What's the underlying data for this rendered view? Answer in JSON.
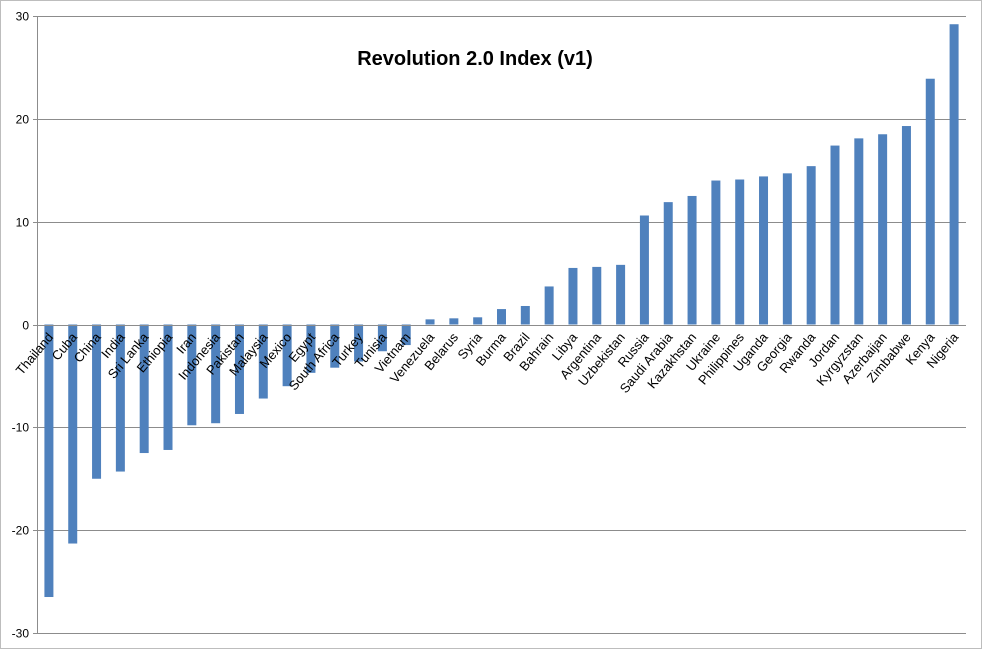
{
  "chart_data": {
    "type": "bar",
    "title": "Revolution 2.0 Index (v1)",
    "xlabel": "",
    "ylabel": "",
    "ylim": [
      -30,
      30
    ],
    "yticks": [
      30,
      20,
      10,
      0,
      -10,
      -20,
      -30
    ],
    "grid": "horizontal",
    "legend": "none",
    "bar_color": "#4f81bd",
    "categories": [
      "Thailand",
      "Cuba",
      "China",
      "India",
      "Sri Lanka",
      "Ethiopia",
      "Iran",
      "Indonesia",
      "Pakistan",
      "Malaysia",
      "Mexico",
      "Egypt",
      "South Africa",
      "Turkey",
      "Tunisia",
      "Vietnam",
      "Venezuela",
      "Belarus",
      "Syria",
      "Burma",
      "Brazil",
      "Bahrain",
      "Libya",
      "Argentina",
      "Uzbekistan",
      "Russia",
      "Saudi Arabia",
      "Kazakhstan",
      "Ukraine",
      "Philippines",
      "Uganda",
      "Georgia",
      "Rwanda",
      "Jordan",
      "Kyrgyzstan",
      "Azerbaijan",
      "Zimbabwe",
      "Kenya",
      "Nigeria"
    ],
    "values": [
      -26.5,
      -21.3,
      -15.0,
      -14.3,
      -12.5,
      -12.2,
      -9.8,
      -9.6,
      -8.7,
      -7.2,
      -6.0,
      -4.7,
      -4.2,
      -3.6,
      -2.6,
      -2.0,
      0.5,
      0.6,
      0.7,
      1.5,
      1.8,
      3.7,
      5.5,
      5.6,
      5.8,
      10.6,
      11.9,
      12.5,
      14.0,
      14.1,
      14.4,
      14.7,
      15.4,
      17.4,
      18.1,
      18.5,
      19.3,
      23.9,
      29.2
    ]
  }
}
